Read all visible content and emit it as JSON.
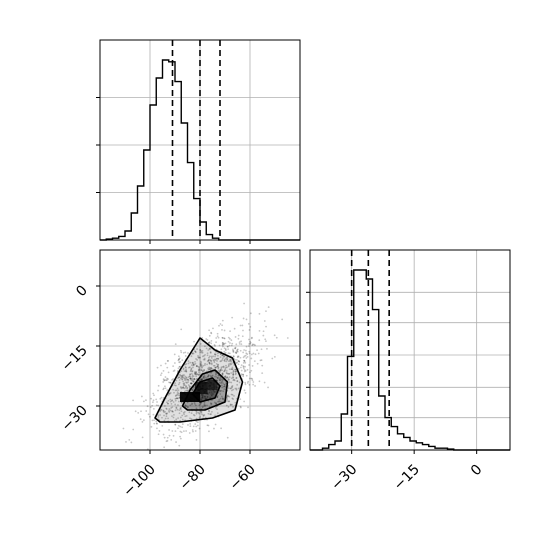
{
  "chart_data": {
    "type": "corner",
    "grid": true,
    "panels": [
      {
        "id": "hist-x",
        "type": "histogram",
        "x_range": [
          -120,
          -40
        ],
        "x_ticks": [
          -100,
          -80,
          -60
        ],
        "y_ticks_unlabeled": [
          0.25,
          0.5,
          0.75
        ],
        "bin_edges": [
          -120,
          -117.5,
          -115,
          -112.5,
          -110,
          -107.5,
          -105,
          -102.5,
          -100,
          -97.5,
          -95,
          -92.5,
          -90,
          -87.5,
          -85,
          -82.5,
          -80,
          -77.5,
          -75,
          -72.5,
          -70,
          -67.5,
          -65,
          -62.5,
          -60,
          -57.5,
          -55,
          -52.5,
          -50,
          -47.5,
          -45,
          -42.5,
          -40
        ],
        "values": [
          0,
          0.005,
          0.01,
          0.02,
          0.05,
          0.15,
          0.3,
          0.5,
          0.75,
          0.9,
          1.0,
          0.99,
          0.88,
          0.65,
          0.43,
          0.23,
          0.1,
          0.03,
          0.01,
          0,
          0,
          0,
          0,
          0,
          0,
          0,
          0,
          0,
          0,
          0,
          0,
          0
        ],
        "quantile_lines": [
          -91,
          -80,
          -72
        ]
      },
      {
        "id": "hist-y",
        "type": "histogram",
        "x_range": [
          -40,
          8
        ],
        "x_ticks": [
          -30,
          -15,
          0
        ],
        "y_ticks_unlabeled": [
          0.17,
          0.33,
          0.5,
          0.67,
          0.83
        ],
        "bin_edges": [
          -40,
          -38.5,
          -37,
          -35.5,
          -34,
          -32.5,
          -31,
          -29.5,
          -28,
          -26.5,
          -25,
          -23.5,
          -22,
          -20.5,
          -19,
          -17.5,
          -16,
          -14.5,
          -13,
          -11.5,
          -10,
          -8.5,
          -7,
          -5.5,
          -4,
          -2.5,
          -1,
          0.5,
          2,
          3.5,
          5,
          6.5,
          8
        ],
        "values": [
          0,
          0,
          0.01,
          0.03,
          0.05,
          0.2,
          0.52,
          1.0,
          1.0,
          0.95,
          0.78,
          0.3,
          0.18,
          0.13,
          0.09,
          0.07,
          0.05,
          0.04,
          0.03,
          0.02,
          0.01,
          0.01,
          0.005,
          0,
          0,
          0,
          0,
          0,
          0,
          0,
          0,
          0
        ],
        "quantile_lines": [
          -30,
          -26,
          -21
        ]
      },
      {
        "id": "joint",
        "type": "2d-density",
        "x_range": [
          -120,
          -40
        ],
        "y_range": [
          -41,
          9
        ],
        "x_ticks": [
          -100,
          -80,
          -60
        ],
        "y_ticks": [
          0,
          -15,
          -30
        ],
        "scatter_center": [
          -78,
          -24
        ],
        "scatter_spread": [
          10,
          6
        ],
        "scatter_correlation": 0.55,
        "contours": [
          [
            [
              -98,
              -33
            ],
            [
              -94,
              -28
            ],
            [
              -88,
              -21
            ],
            [
              -80,
              -13
            ],
            [
              -74,
              -16
            ],
            [
              -67,
              -18
            ],
            [
              -63,
              -24
            ],
            [
              -66,
              -31
            ],
            [
              -75,
              -33
            ],
            [
              -88,
              -34
            ],
            [
              -96,
              -34
            ]
          ],
          [
            [
              -87,
              -30
            ],
            [
              -84,
              -26
            ],
            [
              -79,
              -22
            ],
            [
              -74,
              -21
            ],
            [
              -69,
              -24
            ],
            [
              -70,
              -29
            ],
            [
              -78,
              -31
            ],
            [
              -85,
              -31
            ]
          ],
          [
            [
              -83,
              -27
            ],
            [
              -80,
              -24
            ],
            [
              -75,
              -23
            ],
            [
              -72,
              -25
            ],
            [
              -74,
              -28
            ],
            [
              -80,
              -29
            ]
          ]
        ],
        "dense_core": [
          {
            "x": [
              -88,
              -80
            ],
            "y": [
              -29,
              -26.5
            ],
            "shade": 0.95
          },
          {
            "x": [
              -82,
              -77
            ],
            "y": [
              -27,
              -24
            ],
            "shade": 0.7
          },
          {
            "x": [
              -77,
              -73
            ],
            "y": [
              -26,
              -23.5
            ],
            "shade": 0.55
          }
        ]
      }
    ]
  }
}
